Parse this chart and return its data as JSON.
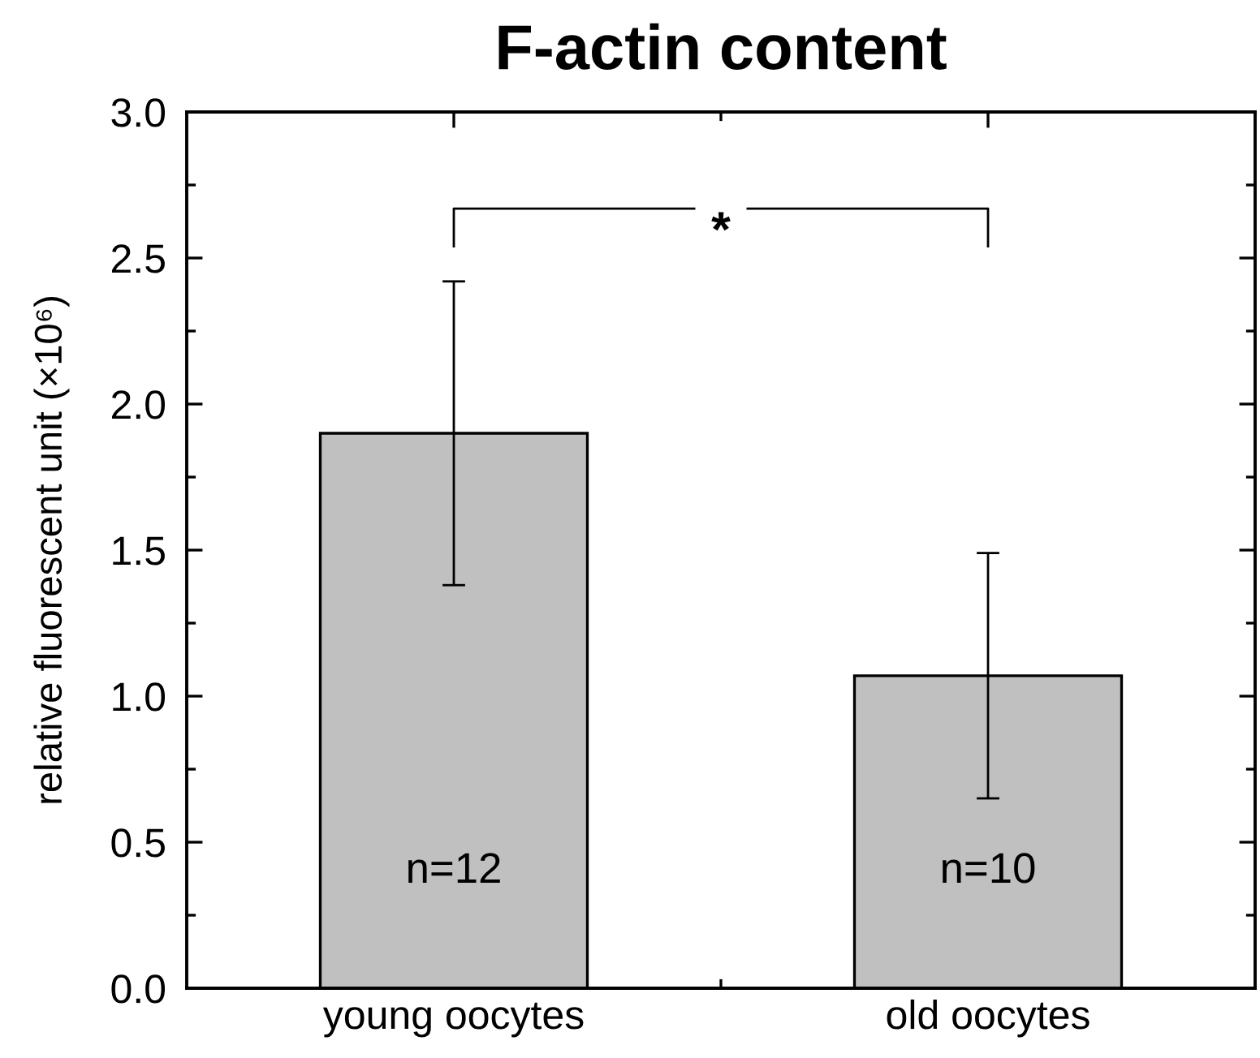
{
  "chart_data": {
    "type": "bar",
    "title": "F-actin content",
    "ylabel": "relative fluorescent unit (×10⁶)",
    "categories": [
      "young oocytes",
      "old oocytes"
    ],
    "values": [
      1.9,
      1.07
    ],
    "errors": [
      0.52,
      0.42
    ],
    "color": "#c0c0c0",
    "ylim": [
      0,
      3
    ],
    "yticks": [
      {
        "value": 0,
        "label": "0.0"
      },
      {
        "value": 0.5,
        "label": "0.5"
      },
      {
        "value": 1,
        "label": "1.0"
      },
      {
        "value": 1.5,
        "label": "1.5"
      },
      {
        "value": 2,
        "label": "2.0"
      },
      {
        "value": 2.5,
        "label": "2.5"
      },
      {
        "value": 3,
        "label": "3.0"
      }
    ],
    "annotations": [
      "*",
      "n=12",
      "n=10"
    ]
  }
}
